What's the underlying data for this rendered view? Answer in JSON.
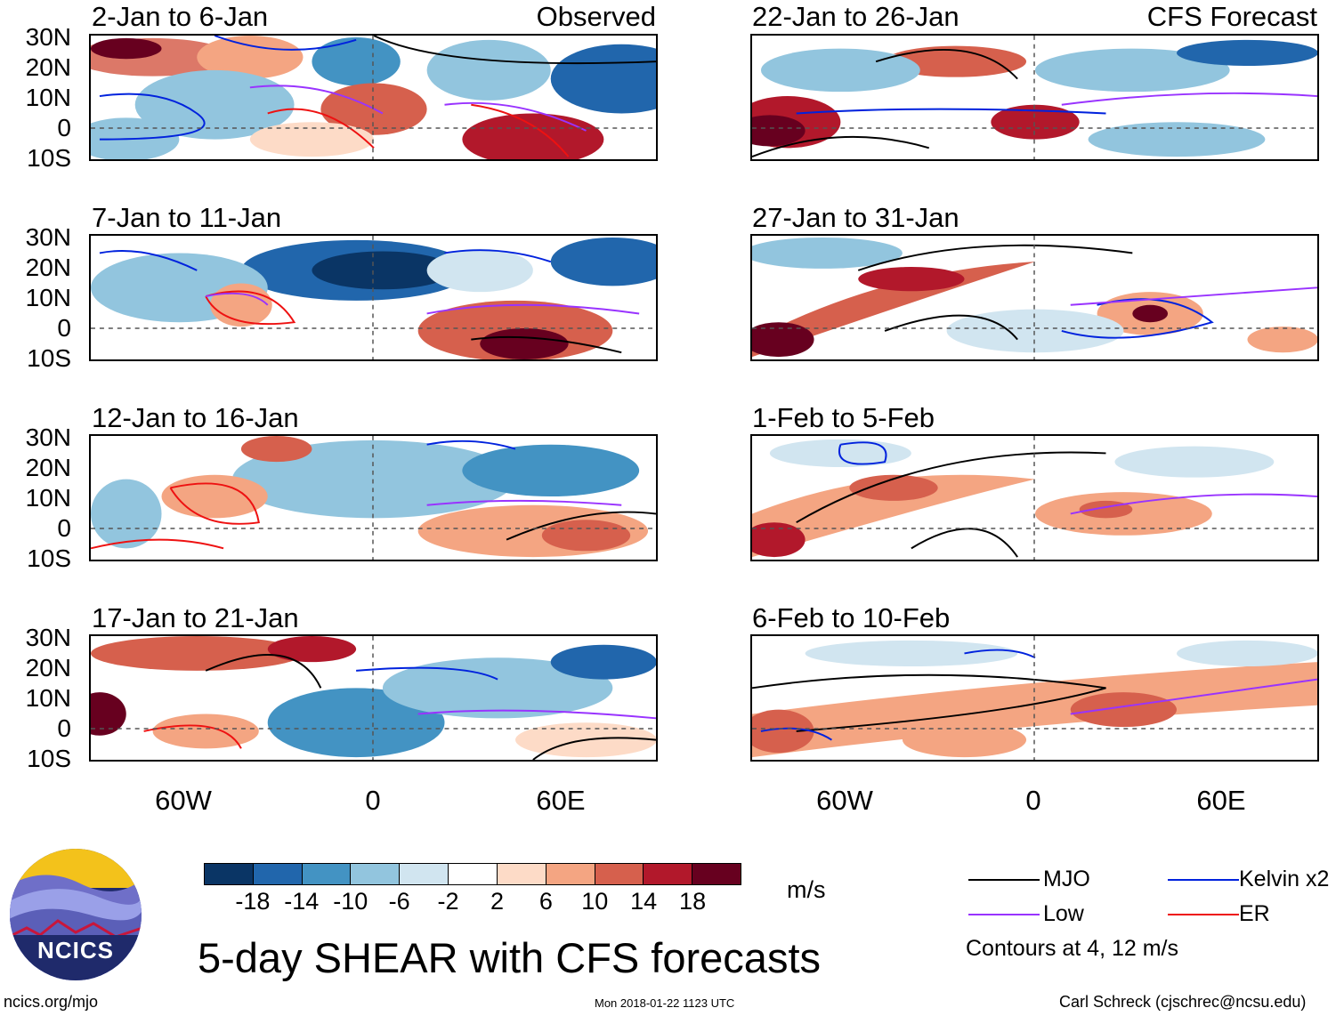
{
  "columns": {
    "left_tag": "Observed",
    "right_tag": "CFS Forecast"
  },
  "panels": {
    "left": [
      {
        "title": "2-Jan to 6-Jan"
      },
      {
        "title": "7-Jan to 11-Jan"
      },
      {
        "title": "12-Jan to 16-Jan"
      },
      {
        "title": "17-Jan to 21-Jan"
      }
    ],
    "right": [
      {
        "title": "22-Jan to 26-Jan"
      },
      {
        "title": "27-Jan to 31-Jan"
      },
      {
        "title": "1-Feb to 5-Feb"
      },
      {
        "title": "6-Feb to 10-Feb"
      }
    ]
  },
  "axes": {
    "lat_ticks": [
      "30N",
      "20N",
      "10N",
      "0",
      "10S"
    ],
    "lon_ticks": [
      "60W",
      "0",
      "60E"
    ]
  },
  "colorbar": {
    "unit": "m/s",
    "ticks": [
      "-18",
      "-14",
      "-10",
      "-6",
      "-2",
      "2",
      "6",
      "10",
      "14",
      "18"
    ],
    "colors": [
      "#0a3565",
      "#2166ac",
      "#4393c3",
      "#92c5de",
      "#d1e5f0",
      "#ffffff",
      "#fddbc7",
      "#f4a582",
      "#d6604d",
      "#b2182b",
      "#67001f"
    ]
  },
  "legend": {
    "mjo": "MJO",
    "low": "Low",
    "kelvin": "Kelvin x2",
    "er": "ER",
    "note": "Contours at 4, 12 m/s",
    "colors": {
      "mjo": "#000000",
      "low": "#9933ff",
      "kelvin": "#0022dd",
      "er": "#ee1111"
    }
  },
  "branding": {
    "logo_text": "NCICS"
  },
  "title": "5-day SHEAR with CFS forecasts",
  "footer": {
    "url": "ncics.org/mjo",
    "timestamp": "Mon 2018-01-22 1123 UTC",
    "credit": "Carl Schreck (cjschrec@ncsu.edu)"
  }
}
